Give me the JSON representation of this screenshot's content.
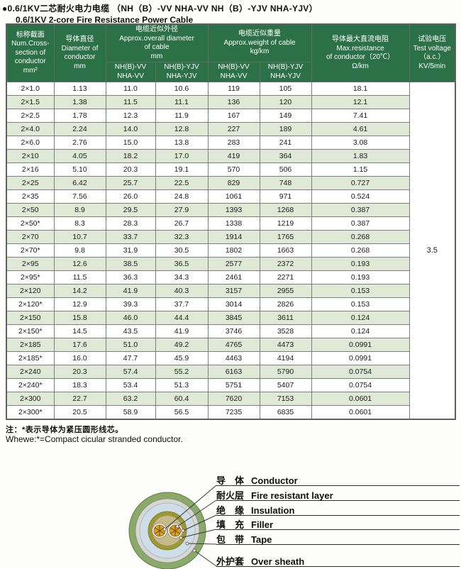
{
  "title": {
    "zh": "●0.6/1KV二芯耐火电力电缆 （NH（B）-VV NHA-VV NH（B）-YJV NHA-YJV）",
    "en": "0.6/1KV 2-core Fire Resistance Power Cable"
  },
  "table": {
    "headers": {
      "cross_section": "标称截面\nNum.Cross-\nsection of\nconductor\nmm²",
      "diameter": "导体直径\nDiameter of\nconductor\nmm",
      "overall_diameter_group": "电缆近似外径\nApprox.overall diameter\nof cable\nmm",
      "weight_group": "电缆近似重量\nApprox.weight of cable\nkg/km",
      "max_resistance": "导体最大直流电阻\nMax.resistance\nof conductor（20℃）\nΩ/km",
      "test_voltage": "试验电压\nTest voltage\n（a.c.）\nKV/5min",
      "sub_vv": "NH(B)-VV\nNHA-VV",
      "sub_yjv": "NH(B)-YJV\nNHA-YJV"
    },
    "rows": [
      [
        "2×1.0",
        "1.13",
        "11.0",
        "10.6",
        "119",
        "105",
        "18.1"
      ],
      [
        "2×1.5",
        "1.38",
        "11.5",
        "11.1",
        "136",
        "120",
        "12.1"
      ],
      [
        "2×2.5",
        "1.78",
        "12.3",
        "11.9",
        "167",
        "149",
        "7.41"
      ],
      [
        "2×4.0",
        "2.24",
        "14.0",
        "12.8",
        "227",
        "189",
        "4.61"
      ],
      [
        "2×6.0",
        "2.76",
        "15.0",
        "13.8",
        "283",
        "241",
        "3.08"
      ],
      [
        "2×10",
        "4.05",
        "18.2",
        "17.0",
        "419",
        "364",
        "1.83"
      ],
      [
        "2×16",
        "5.10",
        "20.3",
        "19.1",
        "570",
        "506",
        "1.15"
      ],
      [
        "2×25",
        "6.42",
        "25.7",
        "22.5",
        "829",
        "748",
        "0.727"
      ],
      [
        "2×35",
        "7.56",
        "26.0",
        "24.8",
        "1061",
        "971",
        "0.524"
      ],
      [
        "2×50",
        "8.9",
        "29.5",
        "27.9",
        "1393",
        "1268",
        "0.387"
      ],
      [
        "2×50*",
        "8.3",
        "28.3",
        "26.7",
        "1338",
        "1219",
        "0.387"
      ],
      [
        "2×70",
        "10.7",
        "33.7",
        "32.3",
        "1914",
        "1765",
        "0.268"
      ],
      [
        "2×70*",
        "9.8",
        "31.9",
        "30.5",
        "1802",
        "1663",
        "0.268"
      ],
      [
        "2×95",
        "12.6",
        "38.5",
        "36.5",
        "2577",
        "2372",
        "0.193"
      ],
      [
        "2×95*",
        "11.5",
        "36.3",
        "34.3",
        "2461",
        "2271",
        "0.193"
      ],
      [
        "2×120",
        "14.2",
        "41.9",
        "40.3",
        "3157",
        "2955",
        "0.153"
      ],
      [
        "2×120*",
        "12.9",
        "39.3",
        "37.7",
        "3014",
        "2826",
        "0.153"
      ],
      [
        "2×150",
        "15.8",
        "46.0",
        "44.4",
        "3845",
        "3611",
        "0.124"
      ],
      [
        "2×150*",
        "14.5",
        "43.5",
        "41.9",
        "3746",
        "3528",
        "0.124"
      ],
      [
        "2×185",
        "17.6",
        "51.0",
        "49.2",
        "4765",
        "4473",
        "0.0991"
      ],
      [
        "2×185*",
        "16.0",
        "47.7",
        "45.9",
        "4463",
        "4194",
        "0.0991"
      ],
      [
        "2×240",
        "20.3",
        "57.4",
        "55.2",
        "6163",
        "5790",
        "0.0754"
      ],
      [
        "2×240*",
        "18.3",
        "53.4",
        "51.3",
        "5751",
        "5407",
        "0.0754"
      ],
      [
        "2×300",
        "22.7",
        "63.2",
        "60.4",
        "7620",
        "7153",
        "0.0601"
      ],
      [
        "2×300*",
        "20.5",
        "58.9",
        "56.5",
        "7235",
        "6835",
        "0.0601"
      ]
    ],
    "test_voltage_value": "3.5"
  },
  "notes": {
    "zh": "注：*表示导体为紧压圆形线芯。",
    "en": "Whewe:*=Compact cicular stranded conductor."
  },
  "diagram": {
    "labels": [
      {
        "zh": "导　体",
        "en": "Conductor"
      },
      {
        "zh": "耐火层",
        "en": "Fire resistant layer"
      },
      {
        "zh": "绝　缘",
        "en": "Insulation"
      },
      {
        "zh": "填　充",
        "en": "Filler"
      },
      {
        "zh": "包　带",
        "en": "Tape"
      },
      {
        "zh": "外护套",
        "en": "Over sheath"
      }
    ]
  },
  "colors": {
    "header_green": "#2b7046",
    "row_stripe": "#dfe9d6",
    "sheath_green": "#8ba969",
    "silver_ring": "#d7d7d3",
    "pale_blue_ring": "#cfdde8",
    "olive_ring": "#9e9832",
    "filler_tan": "#c6ba88",
    "conductor_gold": "#d9a125"
  }
}
